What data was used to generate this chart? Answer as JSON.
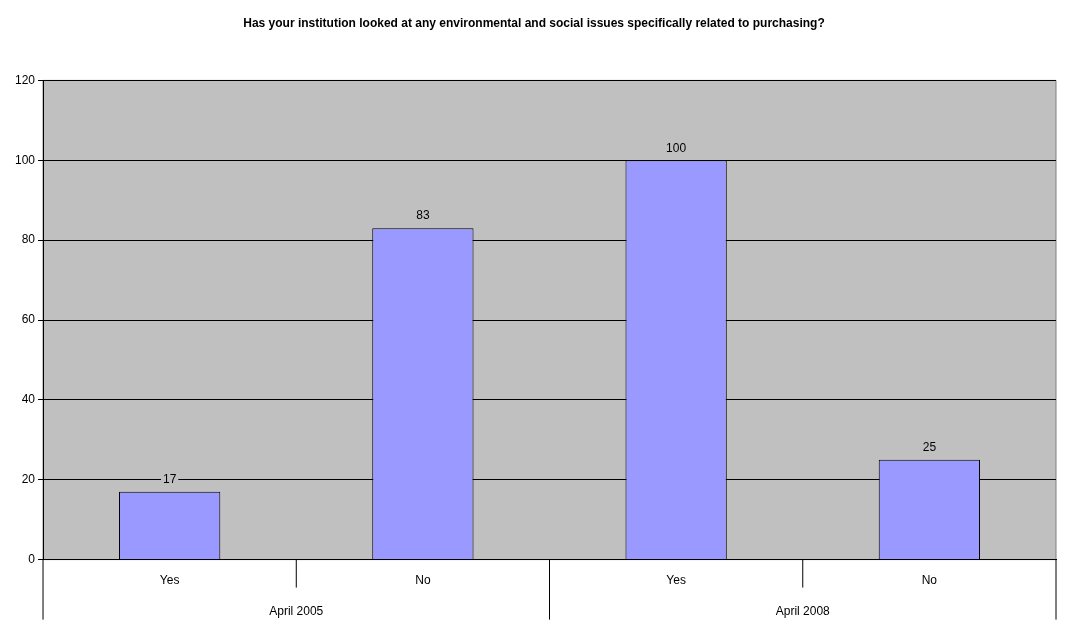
{
  "chart_data": {
    "type": "bar",
    "title": "Has your institution looked at any environmental and social issues specifically related to purchasing?",
    "categories": [
      "Yes",
      "No",
      "Yes",
      "No"
    ],
    "values": [
      17,
      83,
      100,
      25
    ],
    "color": "#9999ff",
    "ylim": [
      0,
      120
    ],
    "yticks": [
      0,
      20,
      40,
      60,
      80,
      100,
      120
    ],
    "grid": "y",
    "legend": false,
    "data_labels": true,
    "annotations": [
      "April 2005",
      "April 2008"
    ]
  }
}
